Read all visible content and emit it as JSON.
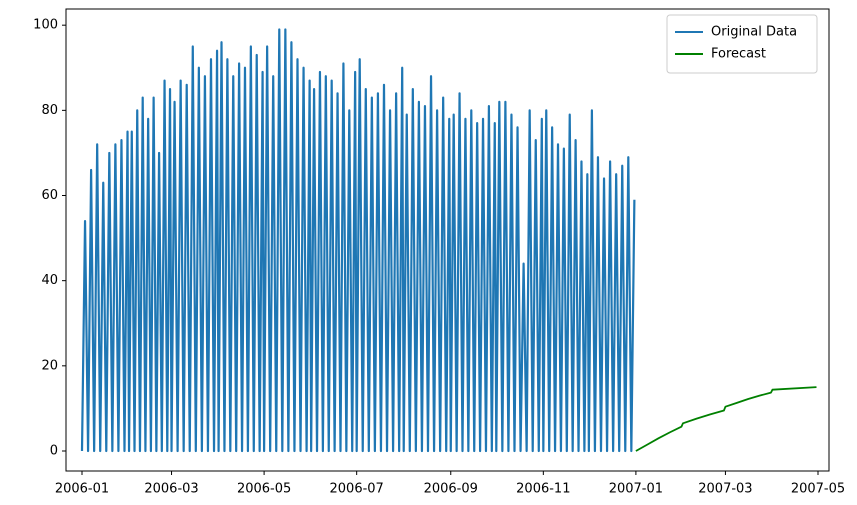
{
  "chart_data": {
    "type": "line",
    "series": [
      {
        "name": "Original Data",
        "color": "#1f77b4",
        "x": [
          "2006-01",
          "2006-02",
          "2006-03",
          "2006-04",
          "2006-05",
          "2006-06",
          "2006-07",
          "2006-08",
          "2006-09",
          "2006-10",
          "2006-11",
          "2006-12"
        ],
        "values": [
          [
            0,
            54,
            0,
            66,
            0,
            72,
            0,
            63,
            0,
            70,
            0,
            72,
            0,
            73,
            0,
            75
          ],
          [
            0,
            75,
            0,
            80,
            0,
            83,
            0,
            78,
            0,
            83,
            0,
            70,
            0,
            87,
            0,
            85
          ],
          [
            0,
            82,
            0,
            87,
            0,
            86,
            0,
            95,
            0,
            90,
            0,
            88,
            0,
            92,
            0,
            94
          ],
          [
            0,
            96,
            0,
            92,
            0,
            88,
            0,
            91,
            0,
            90,
            0,
            95,
            0,
            93,
            0,
            89
          ],
          [
            0,
            95,
            0,
            88,
            0,
            99,
            0,
            99,
            0,
            96,
            0,
            92,
            0,
            90,
            0,
            87
          ],
          [
            0,
            85,
            0,
            89,
            0,
            88,
            0,
            87,
            0,
            84,
            0,
            91,
            0,
            80,
            0,
            89
          ],
          [
            0,
            92,
            0,
            85,
            0,
            83,
            0,
            84,
            0,
            86,
            0,
            80,
            0,
            84,
            0,
            90
          ],
          [
            0,
            79,
            0,
            85,
            0,
            82,
            0,
            81,
            0,
            88,
            0,
            80,
            0,
            83,
            0,
            78
          ],
          [
            0,
            79,
            0,
            84,
            0,
            78,
            0,
            80,
            0,
            77,
            0,
            78,
            0,
            81,
            0,
            77
          ],
          [
            0,
            82,
            0,
            82,
            0,
            79,
            0,
            76,
            0,
            44,
            0,
            80,
            0,
            73,
            0,
            78
          ],
          [
            0,
            80,
            0,
            76,
            0,
            72,
            0,
            71,
            0,
            79,
            0,
            73,
            0,
            68,
            0,
            65
          ],
          [
            0,
            80,
            0,
            69,
            0,
            64,
            0,
            68,
            0,
            65,
            0,
            67,
            0,
            69,
            0,
            59
          ]
        ]
      },
      {
        "name": "Forecast",
        "color": "#008000",
        "x": [
          "2007-01",
          "2007-02",
          "2007-03",
          "2007-04"
        ],
        "values": [
          [
            0,
            1.5,
            3,
            4.4,
            5.7
          ],
          [
            6.5,
            7.6,
            8.6,
            9.5
          ],
          [
            10.4,
            11.3,
            12.2,
            13,
            13.7
          ],
          [
            14.4,
            15
          ]
        ]
      }
    ],
    "xlim": [
      "2006-01",
      "2007-05"
    ],
    "xticks": [
      "2006-01",
      "2006-03",
      "2006-05",
      "2006-07",
      "2006-09",
      "2006-11",
      "2007-01",
      "2007-03",
      "2007-05"
    ],
    "ylim": [
      -4.7,
      103.8
    ],
    "yticks": [
      0,
      20,
      40,
      60,
      80,
      100
    ],
    "legend": "upper right"
  }
}
